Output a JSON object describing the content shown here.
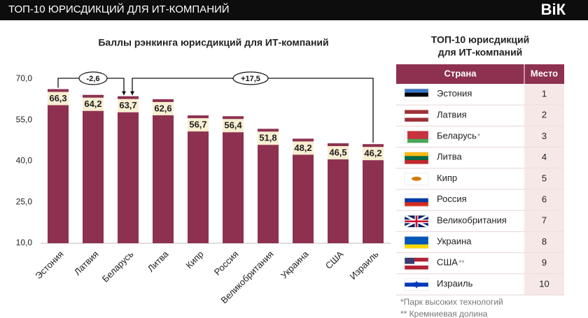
{
  "header": {
    "title": "ТОП-10 ЮРИСДИКЦИЙ ДЛЯ ИТ-КОМПАНИЙ",
    "logo": "ВіК"
  },
  "chart_data": {
    "type": "bar",
    "title": "Баллы  рэнкинга юрисдикций для ИТ-компаний",
    "categories": [
      "Эстония",
      "Латвия",
      "Беларусь",
      "Литва",
      "Кипр",
      "Россия",
      "Великобритания",
      "Украина",
      "США",
      "Израиль"
    ],
    "values": [
      66.3,
      64.2,
      63.7,
      62.6,
      56.7,
      56.4,
      51.8,
      48.2,
      46.5,
      46.2
    ],
    "value_labels": [
      "66,3",
      "64,2",
      "63,7",
      "62,6",
      "56,7",
      "56,4",
      "51,8",
      "48,2",
      "46,5",
      "46,2"
    ],
    "color": "#8e3151",
    "label_color": "#f8eed2",
    "ylim": [
      10,
      70
    ],
    "yticks": [
      {
        "value": 10,
        "label": "10,0"
      },
      {
        "value": 25,
        "label": "25,0"
      },
      {
        "value": 40,
        "label": "40,0"
      },
      {
        "value": 55,
        "label": "55,0"
      },
      {
        "value": 70,
        "label": "70,0"
      }
    ],
    "grid": false,
    "annotations": [
      "-2,6",
      "+17,5"
    ]
  },
  "table": {
    "title": [
      "ТОП-10 юрисдикций",
      "для ИТ-компаний"
    ],
    "columns": [
      "Страна",
      "Место"
    ],
    "rows": [
      {
        "country": "Эстония",
        "place": 1
      },
      {
        "country": "Латвия",
        "place": 2
      },
      {
        "country": "Беларусь",
        "note": "*",
        "place": 3
      },
      {
        "country": "Литва",
        "place": 4
      },
      {
        "country": "Кипр",
        "place": 5
      },
      {
        "country": "Россия",
        "place": 6
      },
      {
        "country": "Великобритания",
        "place": 7
      },
      {
        "country": "Украина",
        "place": 8
      },
      {
        "country": "США",
        "note": "**",
        "place": 9
      },
      {
        "country": "Израиль",
        "place": 10
      }
    ]
  },
  "footnotes": [
    "*Парк высоких технологий",
    "** Кремниевая долина"
  ]
}
